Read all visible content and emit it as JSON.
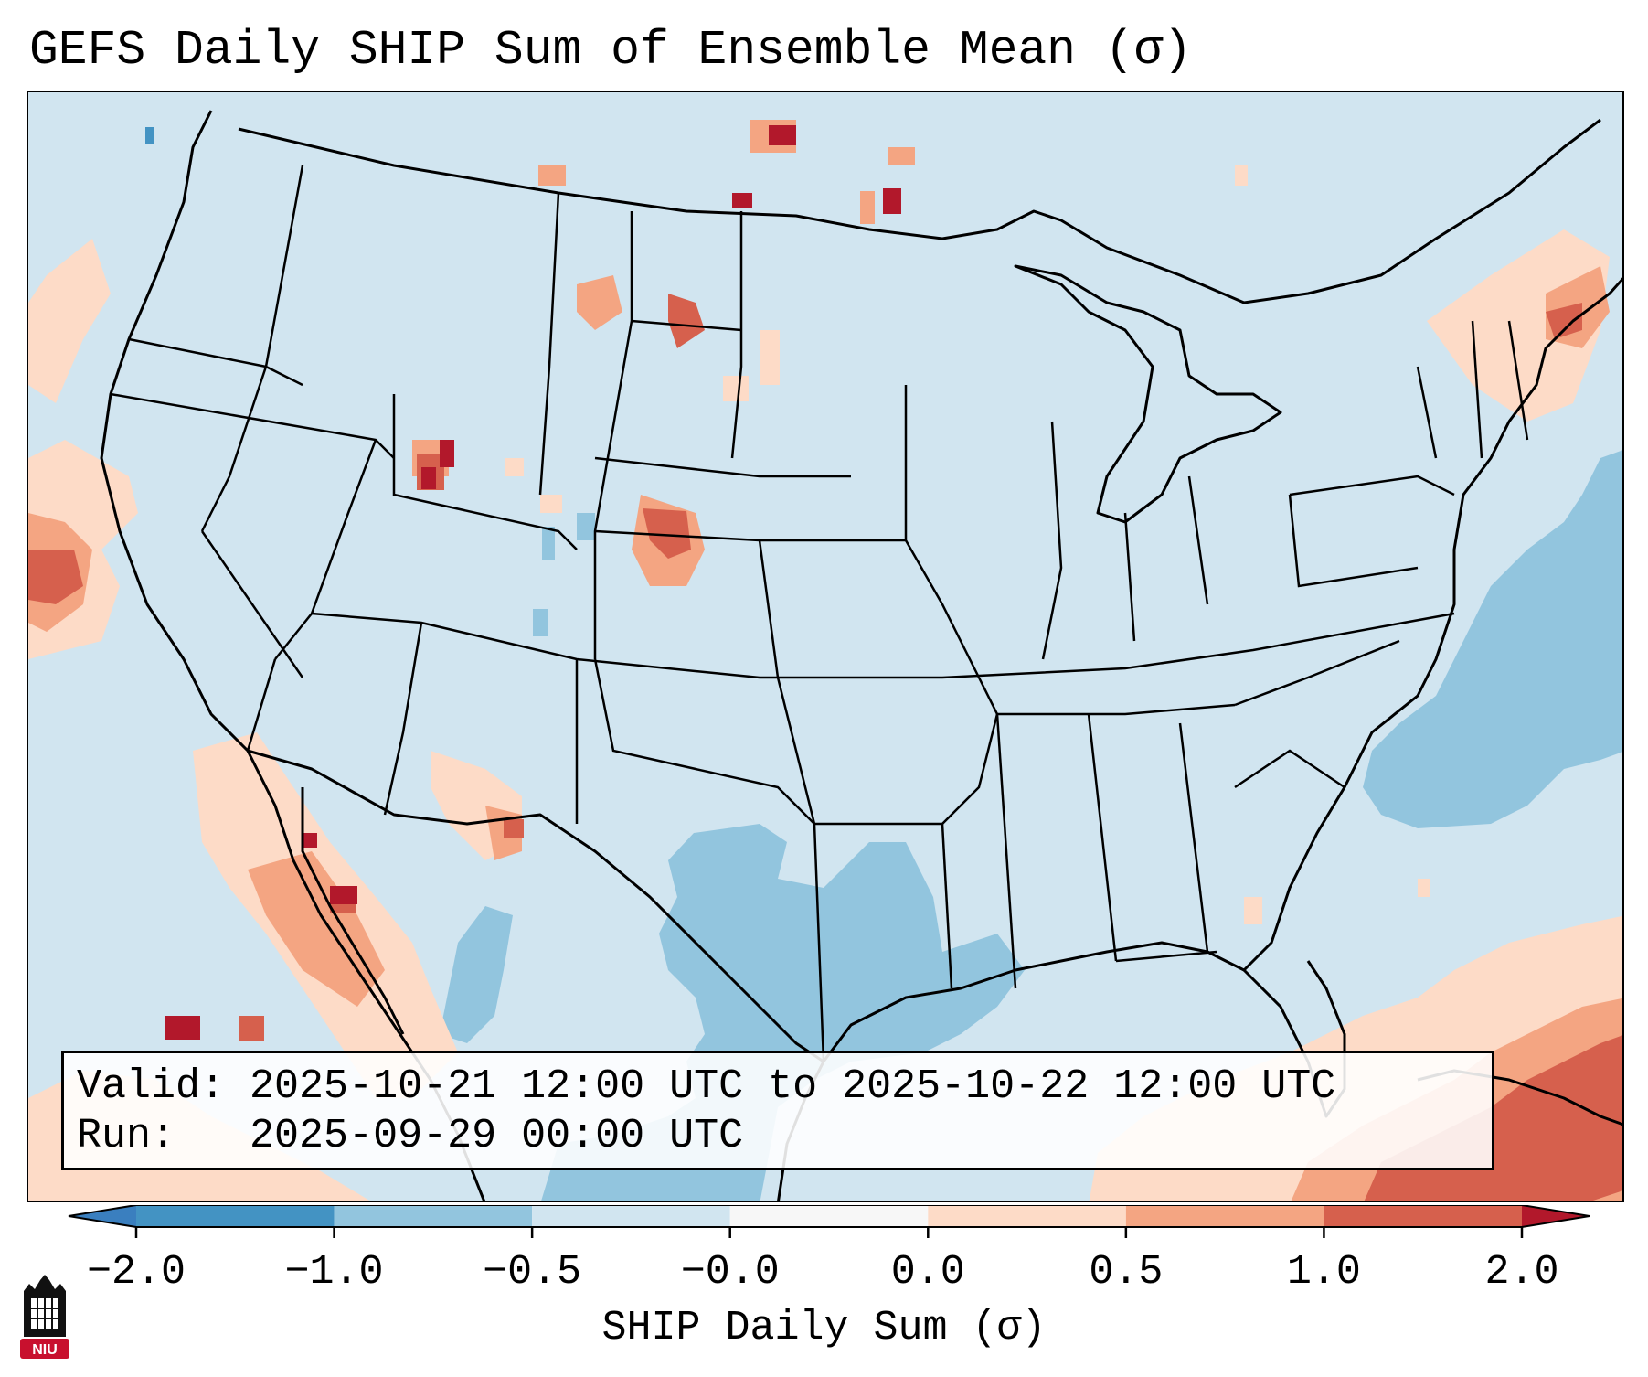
{
  "title": "GEFS Daily SHIP Sum of Ensemble Mean (σ)",
  "info": {
    "valid_label": "Valid:",
    "valid_value": "2025-10-21 12:00 UTC to 2025-10-22 12:00 UTC",
    "run_label": "Run:",
    "run_value": "2025-09-29 00:00 UTC"
  },
  "colorbar": {
    "label": "SHIP Daily Sum (σ)",
    "ticks": [
      "−2.0",
      "−1.0",
      "−0.5",
      "−0.0",
      "0.0",
      "0.5",
      "1.0",
      "2.0"
    ],
    "bins": [
      {
        "range": "< -2.0",
        "color": "#3a7fbf"
      },
      {
        "range": "-2.0 to -1.0",
        "color": "#4393c3"
      },
      {
        "range": "-1.0 to -0.5",
        "color": "#92c5de"
      },
      {
        "range": "-0.5 to -0.0",
        "color": "#d1e5f0"
      },
      {
        "range": "-0.0 to 0.0",
        "color": "#f7f7f7"
      },
      {
        "range": "0.0 to 0.5",
        "color": "#fddbc7"
      },
      {
        "range": "0.5 to 1.0",
        "color": "#f4a582"
      },
      {
        "range": "1.0 to 2.0",
        "color": "#d6604d"
      },
      {
        "range": "> 2.0",
        "color": "#b2182b"
      }
    ]
  },
  "colors": {
    "background_field": "#d1e5f0",
    "negative_anomaly": "#92c5de",
    "positive_light": "#fddbc7",
    "positive_mid": "#f4a582",
    "positive_high": "#d6604d",
    "positive_extreme": "#b2182b"
  },
  "logo": {
    "text": "NIU",
    "icon": "niu-logo-icon"
  }
}
